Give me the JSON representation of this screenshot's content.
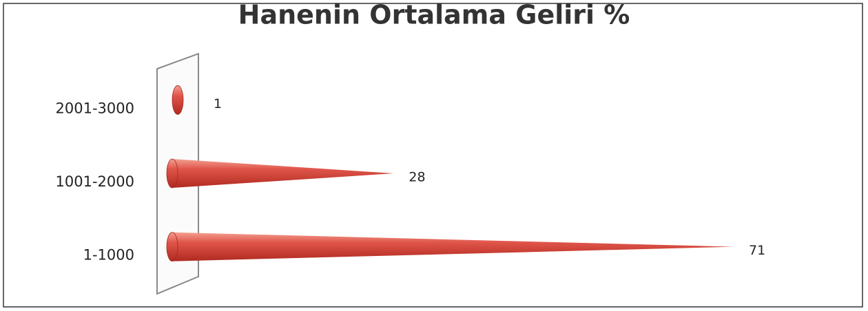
{
  "chart_data": {
    "type": "bar",
    "orientation": "horizontal",
    "title": "Hanenin Ortalama Geliri %",
    "categories": [
      "2001-3000",
      "1001-2000",
      "1-1000"
    ],
    "values": [
      1,
      28,
      71
    ],
    "color": "#d9453a"
  }
}
